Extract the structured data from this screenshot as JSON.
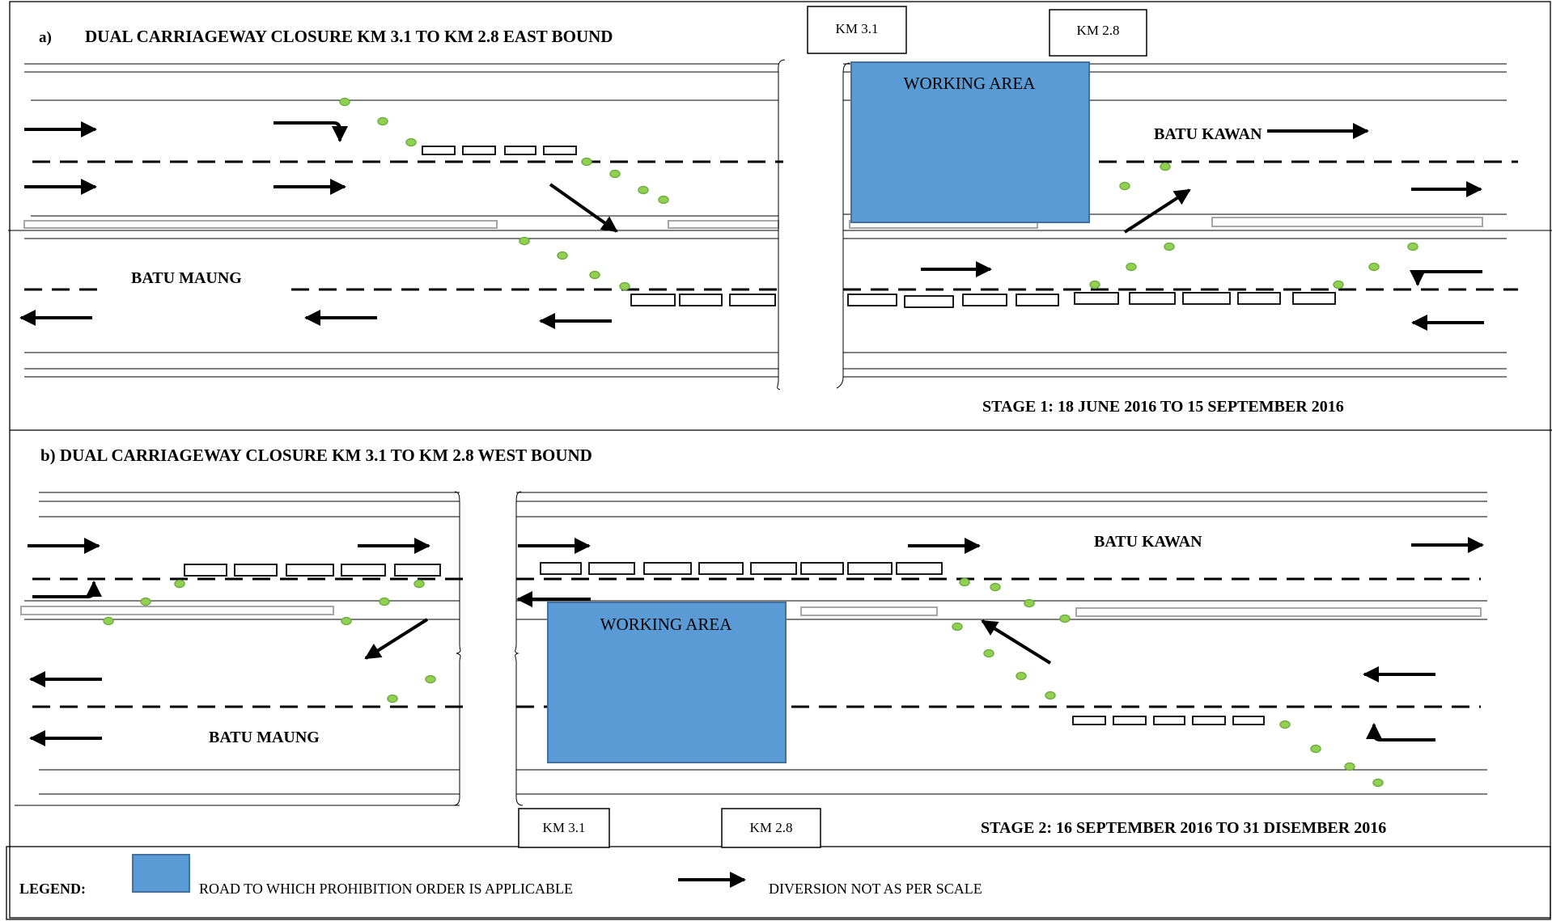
{
  "panel_a": {
    "letter": "a)",
    "title": "DUAL CARRIAGEWAY CLOSURE KM 3.1 TO KM 2.8 EAST BOUND",
    "km_start": "KM 3.1",
    "km_end": "KM 2.8",
    "working_area": "WORKING AREA",
    "upper_destination": "BATU KAWAN",
    "lower_destination": "BATU MAUNG",
    "stage": "STAGE 1: 18 JUNE 2016 TO 15 SEPTEMBER 2016"
  },
  "panel_b": {
    "title": "b)  DUAL CARRIAGEWAY CLOSURE KM 3.1 TO KM 2.8 WEST BOUND",
    "km_start": "KM 3.1",
    "km_end": "KM 2.8",
    "working_area": "WORKING AREA",
    "upper_destination": "BATU KAWAN",
    "lower_destination": "BATU MAUNG",
    "stage": "STAGE 2: 16 SEPTEMBER 2016 TO 31 DISEMBER 2016"
  },
  "legend": {
    "label": "LEGEND:",
    "working_area_desc": "ROAD TO WHICH PROHIBITION ORDER IS APPLICABLE",
    "arrow_desc": "DIVERSION NOT AS PER SCALE"
  },
  "colors": {
    "working_area_fill": "#5b9bd5",
    "working_area_stroke": "#41719c",
    "cone_fill": "#92d050",
    "cone_stroke": "#70ad47",
    "median_stroke": "#a6a6a6",
    "line": "#000000"
  }
}
